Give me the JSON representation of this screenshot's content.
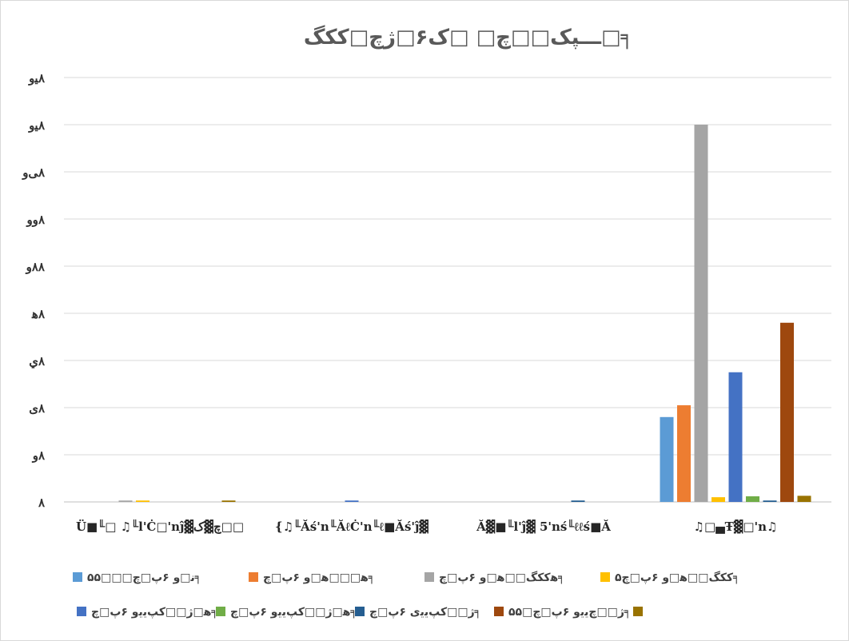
{
  "chart_data": {
    "type": "bar",
    "title": "ـــپک□□چ□ □ک۶□ژچ□ککگ□╕",
    "categories": [
      "Ü■╙□ ♫╙l'Ċ□'nĵ▓چ▓ک□□",
      "{♫╙Ăś'n╙ĂℓĊ'n╙ℓ■Ăś'ĵ▓",
      "Ă▓■╙l'ĵ▓ 5'nś╙ℓℓś■Ă",
      "♫□▄Ŧ▓□'n♫"
    ],
    "y_tick_labels": [
      "٨",
      "٨و",
      "٨ی",
      "٨ي",
      "٨ﻫ",
      "٨٨و",
      "٨وو",
      "٨ﻰو",
      "٨ﻴو",
      "٨ﻴو"
    ],
    "ylim": [
      0,
      9
    ],
    "grid": true,
    "legend_position": "bottom",
    "series": [
      {
        "name": "۵۵□□□ﻧ□و ۶پ□چ╕",
        "color": "#5b9bd5",
        "values": [
          0,
          0,
          0,
          1.8
        ]
      },
      {
        "name": "ﻫ□□□ﻫ□و ۶پ□چ╕",
        "color": "#ed7d31",
        "values": [
          0,
          0,
          0,
          2.05
        ]
      },
      {
        "name": "ﻫککگ□□ﻫ□و ۶پ□چ╕",
        "color": "#a5a5a5",
        "values": [
          0.03,
          0,
          0,
          8.0
        ]
      },
      {
        "name": "۵ککگ□□ﻫ□و ۶پ□چ╕",
        "color": "#ffc000",
        "values": [
          0.03,
          0,
          0,
          0.1
        ]
      },
      {
        "name": "ﻫ□ژ□□کپﯾﯾو ۶پ□چ╕",
        "color": "#4472c4",
        "values": [
          0,
          0.03,
          0,
          2.75
        ]
      },
      {
        "name": "ﻫ□ژ□□کپﯾﯾو ۶پ□چ╕",
        "color": "#70ad47",
        "values": [
          0,
          0,
          0,
          0.12
        ]
      },
      {
        "name": "ژ□□کپﯾﯾی ۶پ□چ╕",
        "color": "#255e91",
        "values": [
          0,
          0,
          0.03,
          0.03
        ]
      },
      {
        "name": "۵۵□ژ□□چﯾﯾو ۶پ□چ╕",
        "color": "#9e480e",
        "values": [
          0,
          0,
          0,
          3.8
        ]
      },
      {
        "name": "",
        "color": "#997300",
        "values": [
          0.03,
          0,
          0,
          0.13
        ]
      }
    ]
  }
}
